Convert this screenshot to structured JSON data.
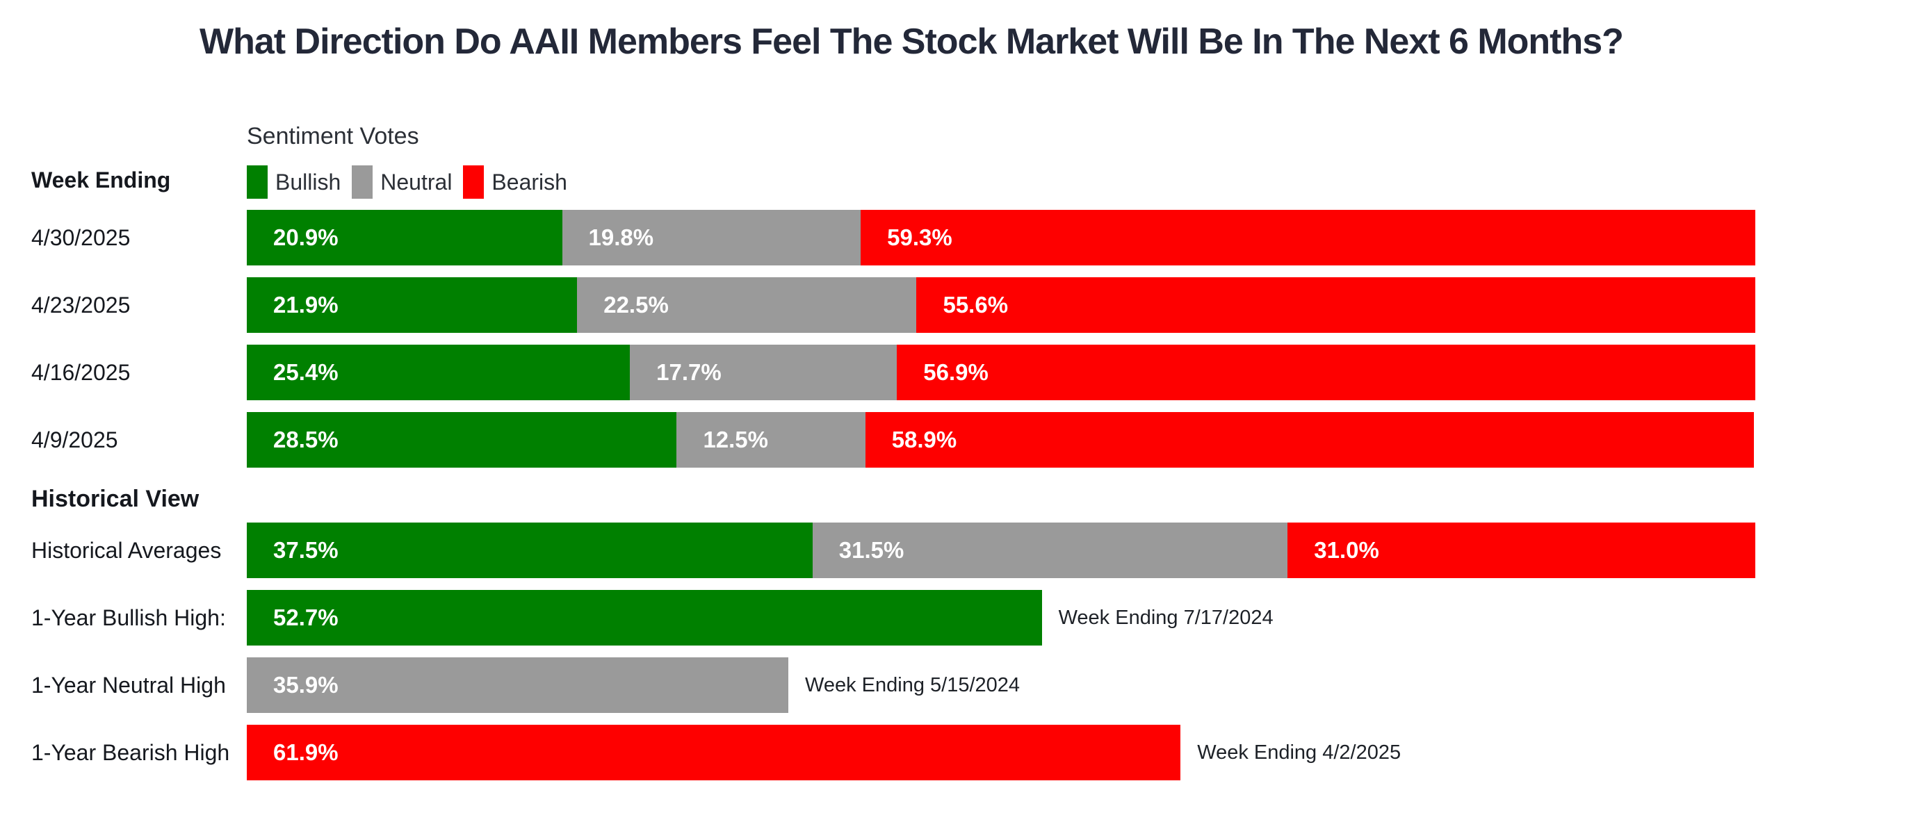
{
  "title": "What Direction Do AAII Members Feel The Stock Market Will Be In The Next 6 Months?",
  "colors": {
    "bullish": "#008000",
    "neutral": "#9a9a9a",
    "bearish": "#fe0000",
    "title_text": "#232838",
    "label_text": "#15181e"
  },
  "header": {
    "week_ending_label": "Week Ending",
    "legend_title": "Sentiment Votes",
    "legend": [
      {
        "label": "Bullish"
      },
      {
        "label": "Neutral"
      },
      {
        "label": "Bearish"
      }
    ]
  },
  "weekly": {
    "rows": [
      {
        "date": "4/30/2025",
        "bullish": {
          "value": 20.9,
          "label": "20.9%"
        },
        "neutral": {
          "value": 19.8,
          "label": "19.8%"
        },
        "bearish": {
          "value": 59.3,
          "label": "59.3%"
        }
      },
      {
        "date": "4/23/2025",
        "bullish": {
          "value": 21.9,
          "label": "21.9%"
        },
        "neutral": {
          "value": 22.5,
          "label": "22.5%"
        },
        "bearish": {
          "value": 55.6,
          "label": "55.6%"
        }
      },
      {
        "date": "4/16/2025",
        "bullish": {
          "value": 25.4,
          "label": "25.4%"
        },
        "neutral": {
          "value": 17.7,
          "label": "17.7%"
        },
        "bearish": {
          "value": 56.9,
          "label": "56.9%"
        }
      },
      {
        "date": "4/9/2025",
        "bullish": {
          "value": 28.5,
          "label": "28.5%"
        },
        "neutral": {
          "value": 12.5,
          "label": "12.5%"
        },
        "bearish": {
          "value": 58.9,
          "label": "58.9%"
        }
      }
    ]
  },
  "historical": {
    "heading": "Historical View",
    "averages": {
      "label": "Historical Averages",
      "bullish": {
        "value": 37.5,
        "label": "37.5%"
      },
      "neutral": {
        "value": 31.5,
        "label": "31.5%"
      },
      "bearish": {
        "value": 31.0,
        "label": "31.0%"
      }
    },
    "extremes": [
      {
        "label": "1-Year Bullish High:",
        "value": 52.7,
        "pct_label": "52.7%",
        "annotation": "Week Ending 7/17/2024"
      },
      {
        "label": "1-Year Neutral High",
        "value": 35.9,
        "pct_label": "35.9%",
        "annotation": "Week Ending 5/15/2024"
      },
      {
        "label": "1-Year Bearish High",
        "value": 61.9,
        "pct_label": "61.9%",
        "annotation": "Week Ending 4/2/2025"
      }
    ]
  },
  "chart_data": {
    "type": "bar",
    "orientation": "horizontal",
    "stacked": true,
    "unit": "%",
    "title": "What Direction Do AAII Members Feel The Stock Market Will Be In The Next 6 Months?",
    "legend_title": "Sentiment Votes",
    "legend_position": "top",
    "xlim": [
      0,
      100
    ],
    "grid": false,
    "categories": [
      "4/30/2025",
      "4/23/2025",
      "4/16/2025",
      "4/9/2025",
      "Historical Averages"
    ],
    "series": [
      {
        "name": "Bullish",
        "color": "#008000",
        "values": [
          20.9,
          21.9,
          25.4,
          28.5,
          37.5
        ]
      },
      {
        "name": "Neutral",
        "color": "#9a9a9a",
        "values": [
          19.8,
          22.5,
          17.7,
          12.5,
          31.5
        ]
      },
      {
        "name": "Bearish",
        "color": "#fe0000",
        "values": [
          59.3,
          55.6,
          56.9,
          58.9,
          31.0
        ]
      }
    ],
    "extreme_bars": [
      {
        "category": "1-Year Bullish High:",
        "series": "Bullish",
        "value": 52.7,
        "annotation": "Week Ending 7/17/2024"
      },
      {
        "category": "1-Year Neutral High",
        "series": "Neutral",
        "value": 35.9,
        "annotation": "Week Ending 5/15/2024"
      },
      {
        "category": "1-Year Bearish High",
        "series": "Bearish",
        "value": 61.9,
        "annotation": "Week Ending 4/2/2025"
      }
    ]
  }
}
